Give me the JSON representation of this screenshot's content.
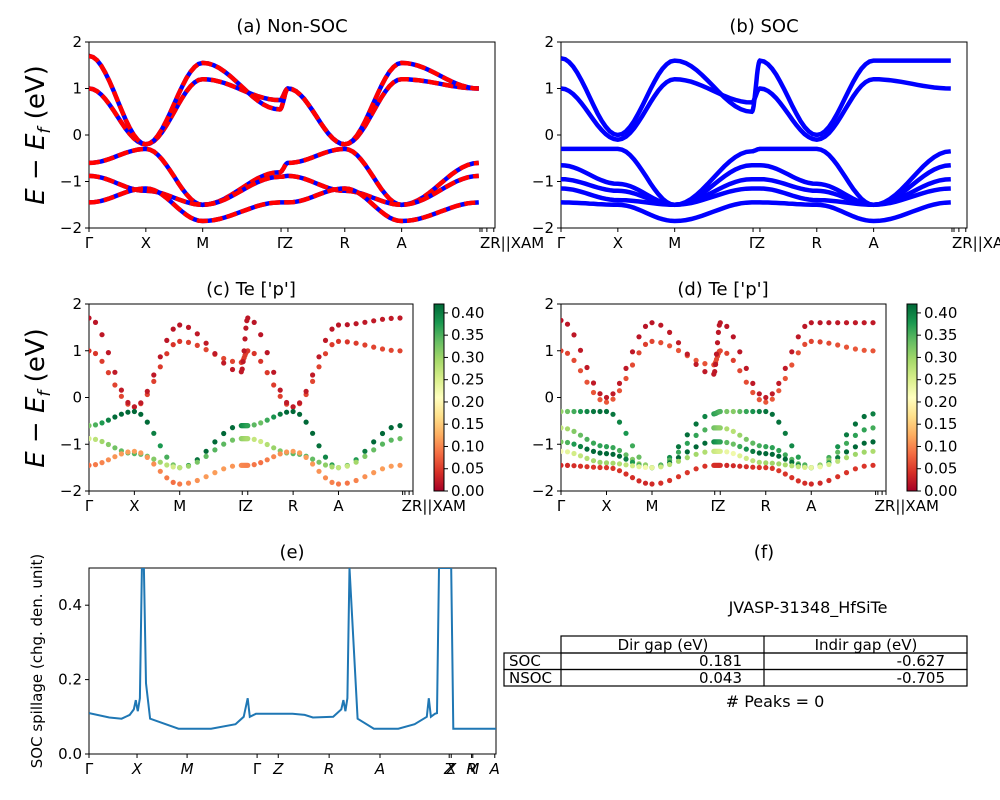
{
  "figure": {
    "ylabel_energy": "E − E_f (eV)",
    "energy_ylim": [
      -2,
      2
    ],
    "energy_yticks": [
      "−2",
      "−1",
      "0",
      "1",
      "2"
    ],
    "kpath_labels": [
      "Γ",
      "X",
      "M",
      "Γ",
      "Z",
      "R",
      "A",
      "Z",
      "R",
      "|",
      "|",
      "X",
      "A",
      "M"
    ]
  },
  "chart_data": [
    {
      "id": "a",
      "type": "line",
      "title": "(a) Non-SOC",
      "xlabel": "",
      "ylabel": "E − E_f (eV)",
      "ylim": [
        -2,
        2
      ],
      "yticks": [
        -2,
        -1,
        0,
        1,
        2
      ],
      "xtick_labels": [
        "Γ",
        "X",
        "M",
        "ΓZ",
        "R",
        "A",
        "ZR||XAM"
      ],
      "style": "red dashed over blue (spin up/down overlay)",
      "colors": {
        "primary": "#ff0000",
        "secondary": "#0000ff"
      },
      "bands_description": "approximate band energies at high-symmetry points",
      "bands": [
        {
          "k": [
            0,
            0.14,
            0.28,
            0.47,
            0.49,
            0.63,
            0.77,
            0.96
          ],
          "E": [
            1.0,
            -0.2,
            1.2,
            0.75,
            1.0,
            -0.2,
            1.2,
            1.0
          ]
        },
        {
          "k": [
            0,
            0.14,
            0.28,
            0.47,
            0.49,
            0.63,
            0.77,
            0.96
          ],
          "E": [
            1.7,
            -0.2,
            1.55,
            0.55,
            1.0,
            -0.2,
            1.55,
            1.0
          ]
        },
        {
          "k": [
            0,
            0.14,
            0.28,
            0.47,
            0.49,
            0.63,
            0.77,
            0.96
          ],
          "E": [
            -0.6,
            -0.3,
            -1.5,
            -0.8,
            -0.6,
            -0.3,
            -1.5,
            -0.6
          ]
        },
        {
          "k": [
            0,
            0.14,
            0.28,
            0.47,
            0.49,
            0.63,
            0.77,
            0.96
          ],
          "E": [
            -0.88,
            -1.2,
            -1.5,
            -0.9,
            -0.88,
            -1.2,
            -1.5,
            -0.88
          ]
        },
        {
          "k": [
            0,
            0.14,
            0.28,
            0.47,
            0.49,
            0.63,
            0.77,
            0.96
          ],
          "E": [
            -1.45,
            -1.15,
            -1.85,
            -1.45,
            -1.45,
            -1.15,
            -1.85,
            -1.45
          ]
        }
      ]
    },
    {
      "id": "b",
      "type": "line",
      "title": "(b) SOC",
      "xlabel": "",
      "ylabel": "",
      "ylim": [
        -2,
        2
      ],
      "yticks": [
        -2,
        -1,
        0,
        1,
        2
      ],
      "xtick_labels": [
        "Γ",
        "X",
        "M",
        "ΓZ",
        "R",
        "A",
        "ZR||XAM"
      ],
      "colors": {
        "primary": "#0000ff"
      },
      "bands": [
        {
          "k": [
            0,
            0.14,
            0.28,
            0.47,
            0.49,
            0.63,
            0.77,
            0.96
          ],
          "E": [
            1.0,
            -0.1,
            1.2,
            0.7,
            1.0,
            -0.1,
            1.2,
            1.0
          ]
        },
        {
          "k": [
            0,
            0.14,
            0.28,
            0.47,
            0.49,
            0.63,
            0.77,
            0.96
          ],
          "E": [
            1.65,
            0.0,
            1.6,
            0.5,
            1.6,
            0.0,
            1.6,
            1.6
          ]
        },
        {
          "k": [
            0,
            0.14,
            0.28,
            0.47,
            0.49,
            0.63,
            0.77,
            0.96
          ],
          "E": [
            -0.3,
            -0.3,
            -1.5,
            -0.35,
            -0.3,
            -0.3,
            -1.5,
            -0.35
          ]
        },
        {
          "k": [
            0,
            0.14,
            0.28,
            0.47,
            0.49,
            0.63,
            0.77,
            0.96
          ],
          "E": [
            -0.65,
            -1.05,
            -1.5,
            -0.65,
            -0.65,
            -1.05,
            -1.5,
            -0.65
          ]
        },
        {
          "k": [
            0,
            0.14,
            0.28,
            0.47,
            0.49,
            0.63,
            0.77,
            0.96
          ],
          "E": [
            -0.95,
            -1.2,
            -1.5,
            -0.95,
            -0.95,
            -1.2,
            -1.5,
            -0.95
          ]
        },
        {
          "k": [
            0,
            0.14,
            0.28,
            0.47,
            0.49,
            0.63,
            0.77,
            0.96
          ],
          "E": [
            -1.15,
            -1.4,
            -1.5,
            -1.15,
            -1.15,
            -1.4,
            -1.5,
            -1.15
          ]
        },
        {
          "k": [
            0,
            0.14,
            0.28,
            0.47,
            0.49,
            0.63,
            0.77,
            0.96
          ],
          "E": [
            -1.45,
            -1.5,
            -1.85,
            -1.45,
            -1.45,
            -1.5,
            -1.85,
            -1.45
          ]
        }
      ]
    },
    {
      "id": "c",
      "type": "scatter",
      "title": "(c)  Te ['p']",
      "ylabel": "E − E_f (eV)",
      "ylim": [
        -2,
        2
      ],
      "yticks": [
        -2,
        -1,
        0,
        1,
        2
      ],
      "xtick_labels": [
        "Γ",
        "X",
        "M",
        "ΓZ",
        "R",
        "A",
        "ZR||XAM"
      ],
      "colorbar": {
        "cmap": "RdYlGn",
        "range": [
          0,
          0.42
        ],
        "ticks": [
          "0.00",
          "0.05",
          "0.10",
          "0.15",
          "0.20",
          "0.25",
          "0.30",
          "0.35",
          "0.40"
        ]
      },
      "bands": [
        {
          "k": [
            0,
            0.14,
            0.28,
            0.47,
            0.49,
            0.63,
            0.77,
            0.96
          ],
          "E": [
            1.0,
            -0.2,
            1.2,
            0.75,
            1.0,
            -0.2,
            1.2,
            1.0
          ],
          "w": 0.05
        },
        {
          "k": [
            0,
            0.14,
            0.28,
            0.47,
            0.49,
            0.63,
            0.77,
            0.96
          ],
          "E": [
            1.7,
            -0.2,
            1.55,
            0.55,
            1.7,
            -0.2,
            1.55,
            1.7
          ],
          "w": 0.02
        },
        {
          "k": [
            0,
            0.14,
            0.28,
            0.47,
            0.49,
            0.63,
            0.77,
            0.96
          ],
          "E": [
            -0.6,
            -0.3,
            -1.5,
            -0.6,
            -0.6,
            -0.3,
            -1.5,
            -0.6
          ],
          "w": 0.38
        },
        {
          "k": [
            0,
            0.14,
            0.28,
            0.47,
            0.49,
            0.63,
            0.77,
            0.96
          ],
          "E": [
            -0.88,
            -1.2,
            -1.5,
            -0.88,
            -0.88,
            -1.2,
            -1.5,
            -0.88
          ],
          "w": 0.3
        },
        {
          "k": [
            0,
            0.14,
            0.28,
            0.47,
            0.49,
            0.63,
            0.77,
            0.96
          ],
          "E": [
            -1.45,
            -1.15,
            -1.85,
            -1.45,
            -1.45,
            -1.15,
            -1.85,
            -1.45
          ],
          "w": 0.1
        }
      ]
    },
    {
      "id": "d",
      "type": "scatter",
      "title": "(d) Te ['p']",
      "ylabel": "",
      "ylim": [
        -2,
        2
      ],
      "yticks": [
        -2,
        -1,
        0,
        1,
        2
      ],
      "xtick_labels": [
        "Γ",
        "X",
        "M",
        "ΓZ",
        "R",
        "A",
        "ZR||XAM"
      ],
      "colorbar": {
        "cmap": "RdYlGn",
        "range": [
          0,
          0.42
        ],
        "ticks": [
          "0.00",
          "0.05",
          "0.10",
          "0.15",
          "0.20",
          "0.25",
          "0.30",
          "0.35",
          "0.40"
        ]
      },
      "bands": [
        {
          "k": [
            0,
            0.14,
            0.28,
            0.47,
            0.49,
            0.63,
            0.77,
            0.96
          ],
          "E": [
            1.0,
            -0.1,
            1.2,
            0.7,
            1.0,
            -0.1,
            1.2,
            1.0
          ],
          "w": 0.06
        },
        {
          "k": [
            0,
            0.14,
            0.28,
            0.47,
            0.49,
            0.63,
            0.77,
            0.96
          ],
          "E": [
            1.65,
            0.0,
            1.6,
            0.5,
            1.6,
            0.0,
            1.6,
            1.6
          ],
          "w": 0.02
        },
        {
          "k": [
            0,
            0.14,
            0.28,
            0.47,
            0.49,
            0.63,
            0.77,
            0.96
          ],
          "E": [
            -0.3,
            -0.3,
            -1.5,
            -0.35,
            -0.3,
            -0.3,
            -1.5,
            -0.35
          ],
          "w": 0.36
        },
        {
          "k": [
            0,
            0.14,
            0.28,
            0.47,
            0.49,
            0.63,
            0.77,
            0.96
          ],
          "E": [
            -0.65,
            -1.05,
            -1.5,
            -0.65,
            -0.65,
            -1.05,
            -1.5,
            -0.65
          ],
          "w": 0.32
        },
        {
          "k": [
            0,
            0.14,
            0.28,
            0.47,
            0.49,
            0.63,
            0.77,
            0.96
          ],
          "E": [
            -0.95,
            -1.2,
            -1.5,
            -0.95,
            -0.95,
            -1.2,
            -1.5,
            -0.95
          ],
          "w": 0.38
        },
        {
          "k": [
            0,
            0.14,
            0.28,
            0.47,
            0.49,
            0.63,
            0.77,
            0.96
          ],
          "E": [
            -1.15,
            -1.4,
            -1.5,
            -1.15,
            -1.15,
            -1.4,
            -1.5,
            -1.15
          ],
          "w": 0.26
        },
        {
          "k": [
            0,
            0.14,
            0.28,
            0.47,
            0.49,
            0.63,
            0.77,
            0.96
          ],
          "E": [
            -1.45,
            -1.5,
            -1.85,
            -1.45,
            -1.45,
            -1.5,
            -1.85,
            -1.45
          ],
          "w": 0.04
        }
      ]
    },
    {
      "id": "e",
      "type": "line",
      "title": "(e)",
      "ylabel": "SOC spillage (chg. den. unit)",
      "ylim": [
        0,
        0.5
      ],
      "yticks": [
        "0.0",
        "0.2",
        "0.4"
      ],
      "xtick_labels": [
        "Γ",
        "X",
        "M",
        "Γ",
        "Z",
        "R",
        "A",
        "Z",
        "X",
        "R",
        "M",
        "A"
      ],
      "color": "#1f77b4",
      "x": [
        0,
        0.05,
        0.08,
        0.1,
        0.11,
        0.115,
        0.118,
        0.12,
        0.125,
        0.13,
        0.135,
        0.14,
        0.15,
        0.22,
        0.3,
        0.36,
        0.38,
        0.39,
        0.395,
        0.41,
        0.5,
        0.53,
        0.55,
        0.6,
        0.62,
        0.625,
        0.63,
        0.635,
        0.64,
        0.66,
        0.7,
        0.76,
        0.8,
        0.83,
        0.835,
        0.84,
        0.85,
        0.855,
        0.86,
        0.89,
        0.895,
        0.9,
        1.0
      ],
      "values": [
        0.11,
        0.098,
        0.095,
        0.105,
        0.12,
        0.145,
        0.125,
        0.115,
        0.15,
        0.5,
        0.5,
        0.19,
        0.095,
        0.068,
        0.068,
        0.08,
        0.1,
        0.15,
        0.1,
        0.108,
        0.108,
        0.105,
        0.098,
        0.1,
        0.12,
        0.145,
        0.115,
        0.15,
        0.5,
        0.095,
        0.068,
        0.068,
        0.08,
        0.1,
        0.15,
        0.1,
        0.108,
        0.11,
        0.5,
        0.5,
        0.068,
        0.068,
        0.068
      ]
    }
  ],
  "info_panel": {
    "title": "(f)",
    "material": "JVASP-31348_HfSiTe",
    "table": {
      "columns": [
        "Dir gap (eV)",
        "Indir gap (eV)"
      ],
      "rows": [
        {
          "label": "SOC",
          "values": [
            "0.181",
            "-0.627"
          ]
        },
        {
          "label": "NSOC",
          "values": [
            "0.043",
            "-0.705"
          ]
        }
      ]
    },
    "peaks_text": "# Peaks = 0"
  }
}
